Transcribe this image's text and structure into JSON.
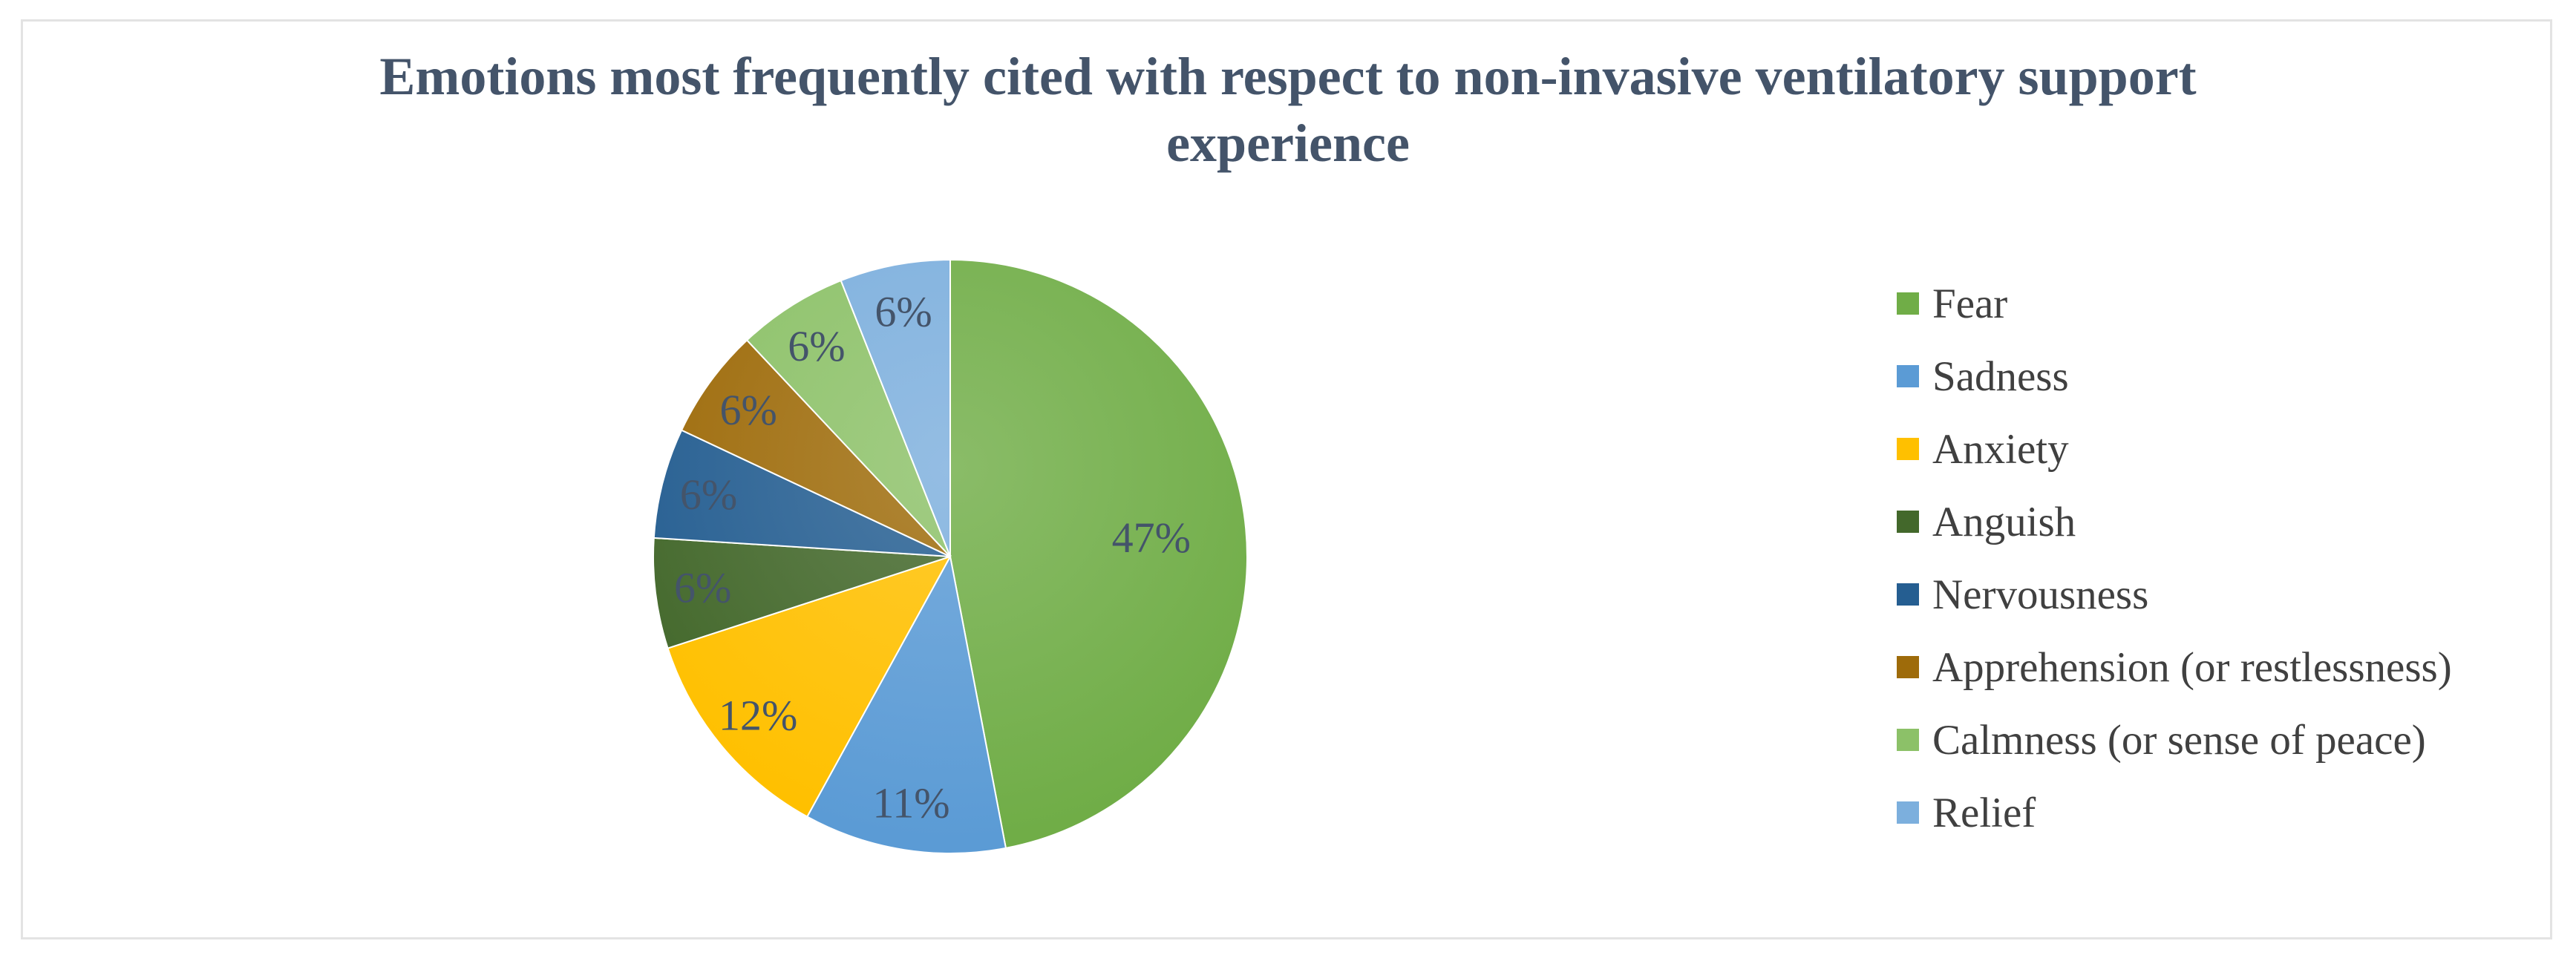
{
  "chart_data": {
    "type": "pie",
    "title": "Emotions most frequently cited with respect to non-invasive ventilatory support experience",
    "legend_position": "right",
    "slices": [
      {
        "label": "Fear",
        "value": 47,
        "display": "47%",
        "color": "#70ad47"
      },
      {
        "label": "Sadness",
        "value": 11,
        "display": "11%",
        "color": "#5b9bd5"
      },
      {
        "label": "Anxiety",
        "value": 12,
        "display": "12%",
        "color": "#ffc000"
      },
      {
        "label": "Anguish",
        "value": 6,
        "display": "6%",
        "color": "#43682b"
      },
      {
        "label": "Nervousness",
        "value": 6,
        "display": "6%",
        "color": "#255e91"
      },
      {
        "label": "Apprehension (or restlessness)",
        "value": 6,
        "display": "6%",
        "color": "#9e6b0a"
      },
      {
        "label": "Calmness (or sense of peace)",
        "value": 6,
        "display": "6%",
        "color": "#8cc168"
      },
      {
        "label": "Relief",
        "value": 6,
        "display": "6%",
        "color": "#7cafdd"
      }
    ]
  }
}
